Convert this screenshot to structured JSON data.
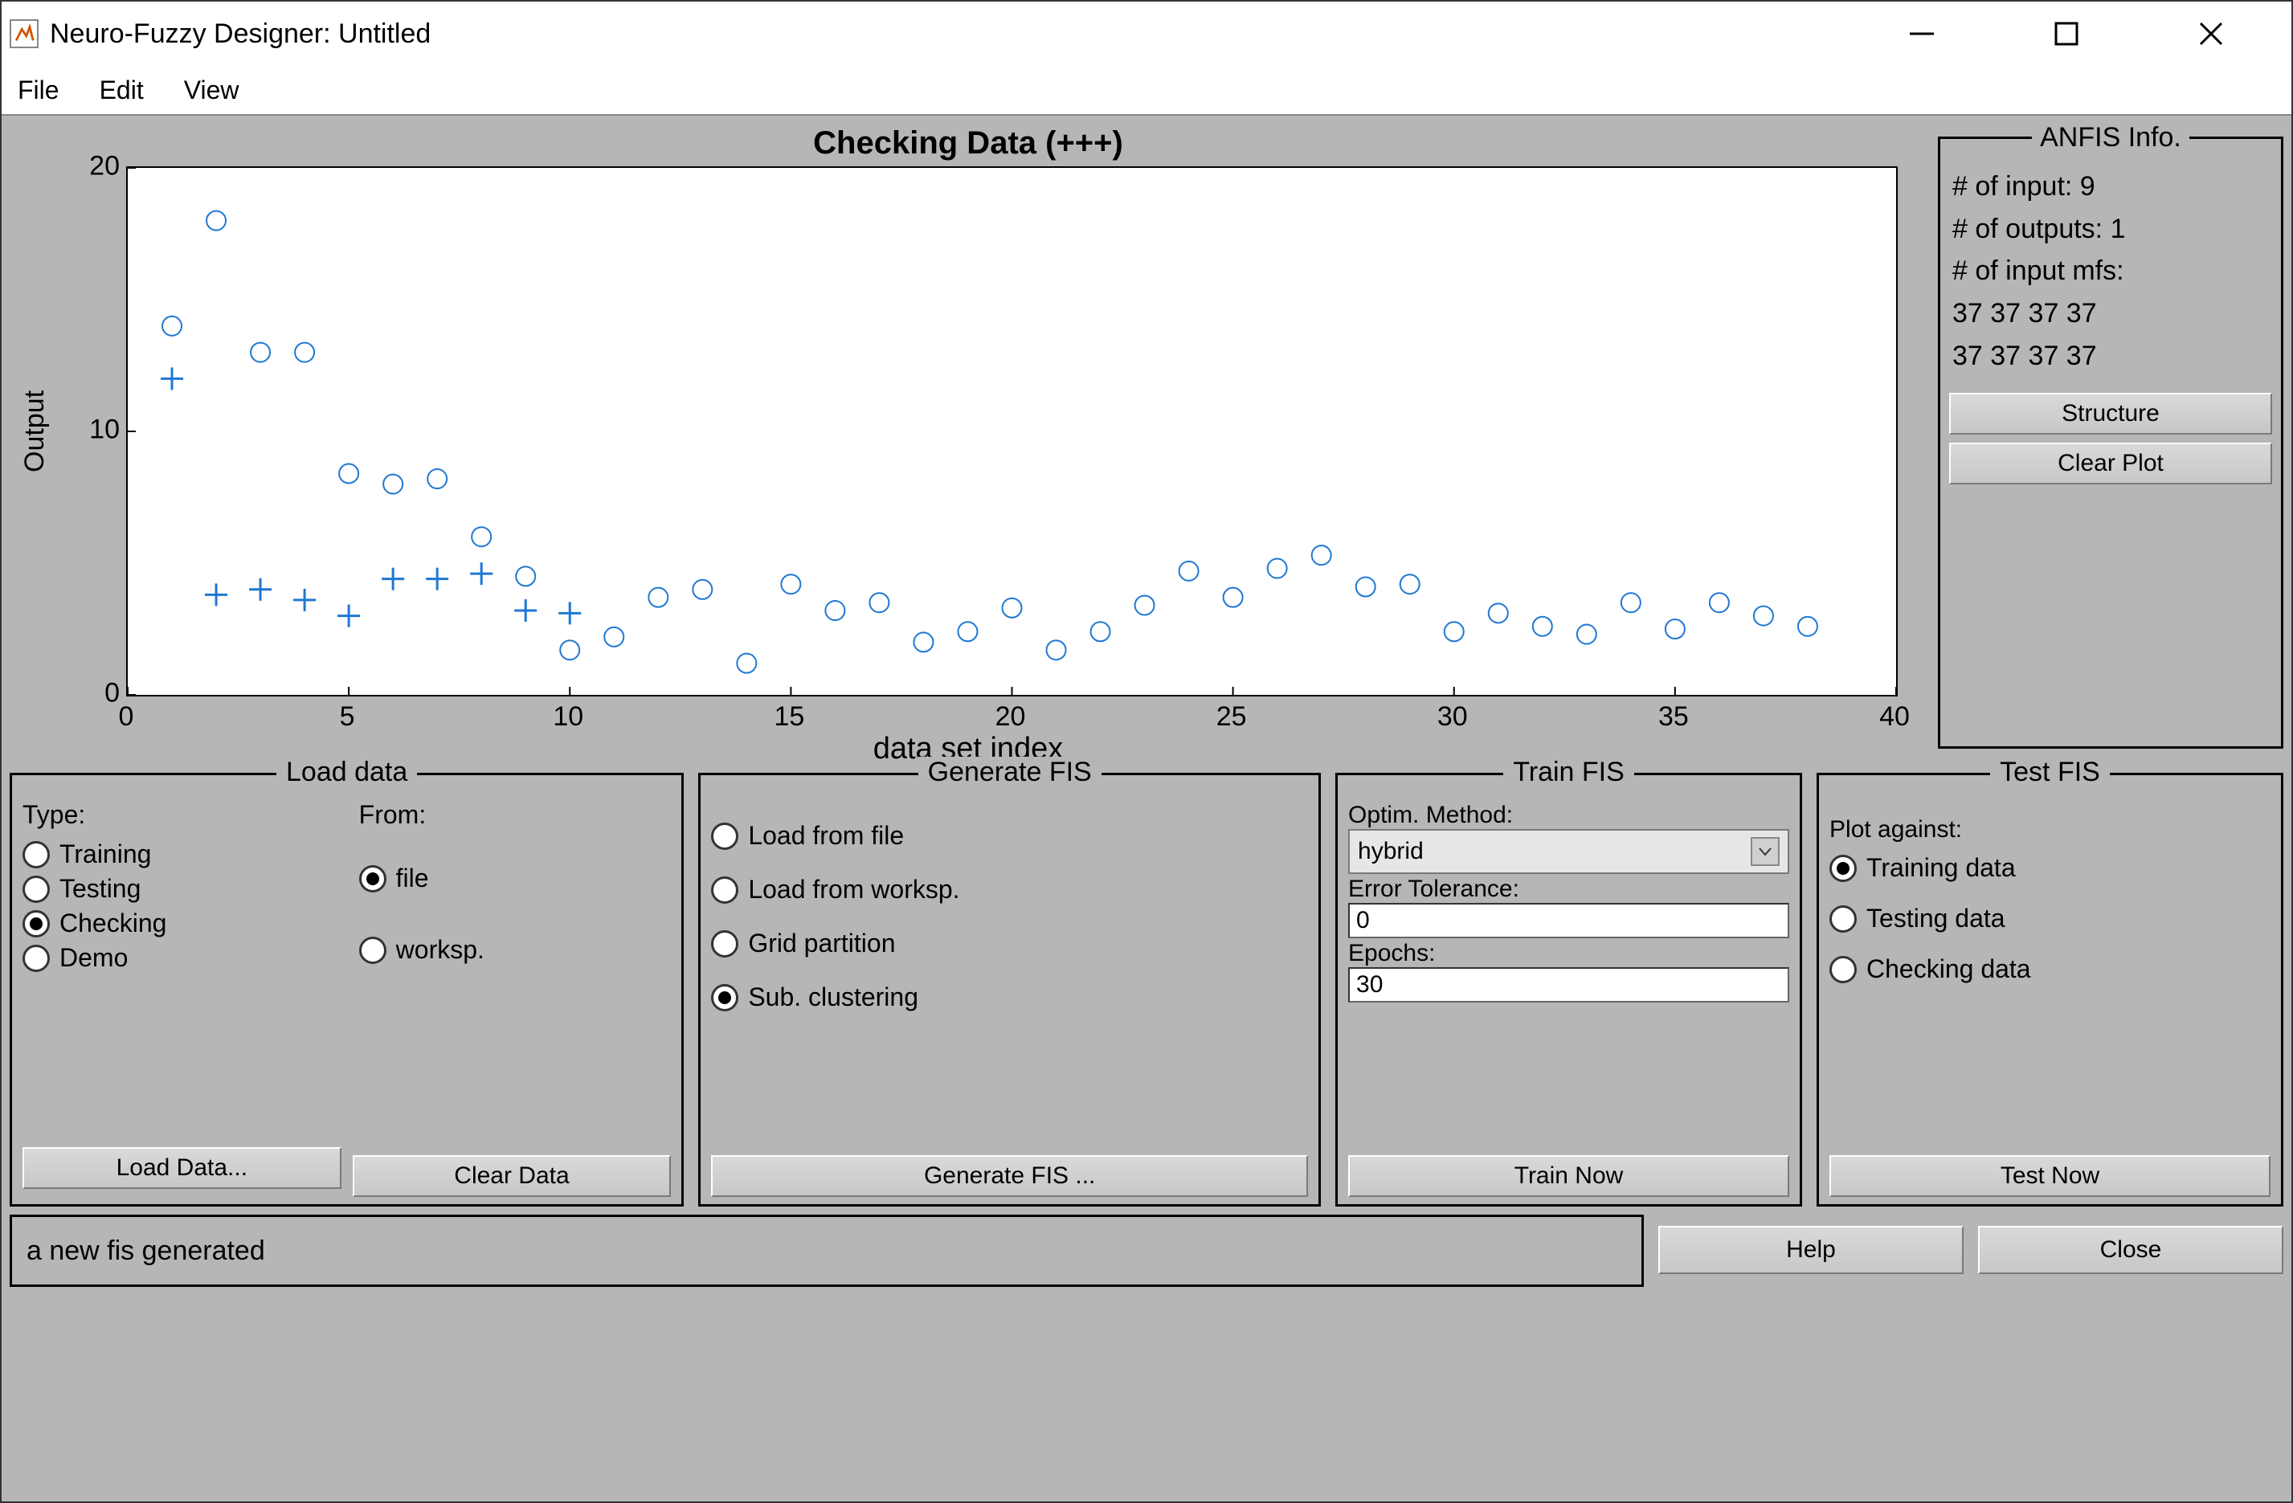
{
  "window": {
    "title": "Neuro-Fuzzy Designer: Untitled"
  },
  "menubar": [
    "File",
    "Edit",
    "View"
  ],
  "plot": {
    "title": "Checking Data (+++)",
    "xlabel": "data set index",
    "ylabel": "Output",
    "xlim": [
      0,
      40
    ],
    "ylim": [
      0,
      20
    ],
    "xticks": [
      0,
      5,
      10,
      15,
      20,
      25,
      30,
      35,
      40
    ],
    "yticks": [
      0,
      10,
      20
    ],
    "background_color": "#ffffff",
    "axis_color": "#000000",
    "series": [
      {
        "name": "checking",
        "marker": "circle",
        "color": "#1f77d4",
        "fill": "none",
        "size": 12,
        "linewidth": 2,
        "points": [
          [
            1,
            14
          ],
          [
            2,
            18
          ],
          [
            3,
            13
          ],
          [
            4,
            13
          ],
          [
            5,
            8.4
          ],
          [
            6,
            8
          ],
          [
            7,
            8.2
          ],
          [
            8,
            6
          ],
          [
            9,
            4.5
          ],
          [
            10,
            1.7
          ],
          [
            11,
            2.2
          ],
          [
            12,
            3.7
          ],
          [
            13,
            4
          ],
          [
            14,
            1.2
          ],
          [
            15,
            4.2
          ],
          [
            16,
            3.2
          ],
          [
            17,
            3.5
          ],
          [
            18,
            2
          ],
          [
            19,
            2.4
          ],
          [
            20,
            3.3
          ],
          [
            21,
            1.7
          ],
          [
            22,
            2.4
          ],
          [
            23,
            3.4
          ],
          [
            24,
            4.7
          ],
          [
            25,
            3.7
          ],
          [
            26,
            4.8
          ],
          [
            27,
            5.3
          ],
          [
            28,
            4.1
          ],
          [
            29,
            4.2
          ],
          [
            30,
            2.4
          ],
          [
            31,
            3.1
          ],
          [
            32,
            2.6
          ],
          [
            33,
            2.3
          ],
          [
            34,
            3.5
          ],
          [
            35,
            2.5
          ],
          [
            36,
            3.5
          ],
          [
            37,
            3
          ],
          [
            38,
            2.6
          ]
        ]
      },
      {
        "name": "plus",
        "marker": "plus",
        "color": "#1f77d4",
        "size": 14,
        "linewidth": 3,
        "points": [
          [
            1,
            12
          ],
          [
            2,
            3.8
          ],
          [
            3,
            4
          ],
          [
            4,
            3.6
          ],
          [
            5,
            3
          ],
          [
            6,
            4.4
          ],
          [
            7,
            4.4
          ],
          [
            8,
            4.6
          ],
          [
            9,
            3.2
          ],
          [
            10,
            3.1
          ]
        ]
      }
    ]
  },
  "anfis": {
    "legend": "ANFIS Info.",
    "lines": [
      "# of input: 9",
      "# of outputs: 1",
      "# of input mfs:",
      "37  37  37  37",
      "37  37  37  37"
    ],
    "buttons": {
      "structure": "Structure",
      "clear_plot": "Clear Plot"
    }
  },
  "load_data": {
    "legend": "Load data",
    "type_label": "Type:",
    "from_label": "From:",
    "types": [
      {
        "label": "Training",
        "checked": false
      },
      {
        "label": "Testing",
        "checked": false
      },
      {
        "label": "Checking",
        "checked": true
      },
      {
        "label": "Demo",
        "checked": false
      }
    ],
    "from": [
      {
        "label": "file",
        "checked": true
      },
      {
        "label": "worksp.",
        "checked": false
      }
    ],
    "buttons": {
      "load": "Load Data...",
      "clear": "Clear Data"
    }
  },
  "generate_fis": {
    "legend": "Generate FIS",
    "options": [
      {
        "label": "Load from file",
        "checked": false
      },
      {
        "label": "Load from worksp.",
        "checked": false
      },
      {
        "label": "Grid partition",
        "checked": false
      },
      {
        "label": "Sub. clustering",
        "checked": true
      }
    ],
    "button": "Generate FIS ..."
  },
  "train_fis": {
    "legend": "Train FIS",
    "optim_label": "Optim. Method:",
    "optim_value": "hybrid",
    "error_label": "Error Tolerance:",
    "error_value": "0",
    "epochs_label": "Epochs:",
    "epochs_value": "30",
    "button": "Train Now"
  },
  "test_fis": {
    "legend": "Test FIS",
    "plot_against_label": "Plot against:",
    "options": [
      {
        "label": "Training data",
        "checked": true
      },
      {
        "label": "Testing data",
        "checked": false
      },
      {
        "label": "Checking data",
        "checked": false
      }
    ],
    "button": "Test Now"
  },
  "status": "a new fis generated",
  "bottom_buttons": {
    "help": "Help",
    "close": "Close"
  }
}
